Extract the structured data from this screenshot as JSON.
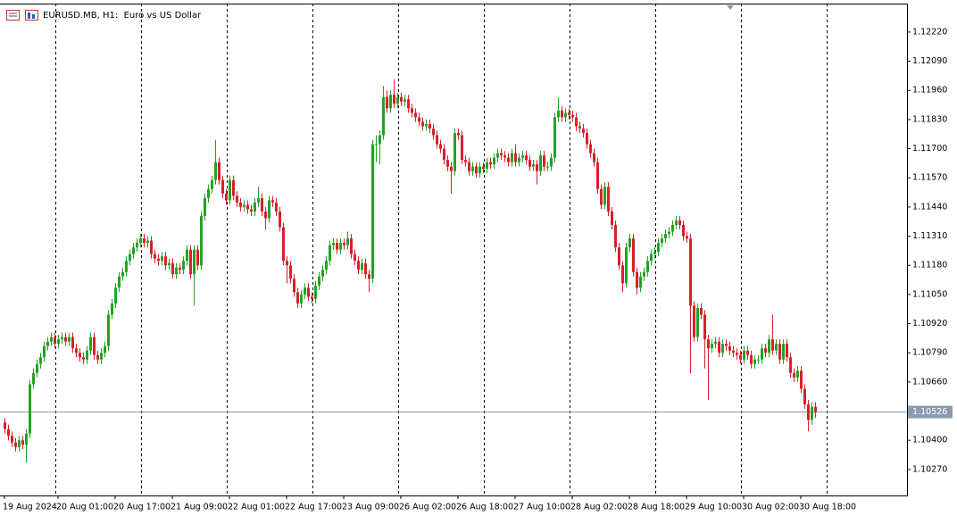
{
  "chart_data": {
    "type": "candlestick",
    "title": "EURUSD.MB, H1:  Euro vs US Dollar",
    "bull_color": "#22a322",
    "bear_color": "#d8202c",
    "grid": false,
    "ylim": [
      1.10154,
      1.12347
    ],
    "xlim": [
      -1.25,
      252.75
    ],
    "yticks": [
      {
        "value": 1.1222,
        "label": "1.12220"
      },
      {
        "value": 1.1209,
        "label": "1.12090"
      },
      {
        "value": 1.1196,
        "label": "1.11960"
      },
      {
        "value": 1.1183,
        "label": "1.11830"
      },
      {
        "value": 1.117,
        "label": "1.11700"
      },
      {
        "value": 1.1157,
        "label": "1.11570"
      },
      {
        "value": 1.1144,
        "label": "1.11440"
      },
      {
        "value": 1.1131,
        "label": "1.11310"
      },
      {
        "value": 1.1118,
        "label": "1.11180"
      },
      {
        "value": 1.1105,
        "label": "1.11050"
      },
      {
        "value": 1.1092,
        "label": "1.10920"
      },
      {
        "value": 1.1079,
        "label": "1.10790"
      },
      {
        "value": 1.1066,
        "label": "1.10660"
      },
      {
        "value": 1.104,
        "label": "1.10400"
      },
      {
        "value": 1.1027,
        "label": "1.10270"
      }
    ],
    "xticks": [
      {
        "value": 0,
        "label": "19 Aug 2024"
      },
      {
        "value": 15,
        "label": "20 Aug 01:00"
      },
      {
        "value": 31,
        "label": "20 Aug 17:00"
      },
      {
        "value": 47,
        "label": "21 Aug 09:00"
      },
      {
        "value": 63,
        "label": "22 Aug 01:00"
      },
      {
        "value": 79,
        "label": "22 Aug 17:00"
      },
      {
        "value": 95,
        "label": "23 Aug 09:00"
      },
      {
        "value": 111,
        "label": "26 Aug 02:00"
      },
      {
        "value": 127,
        "label": "26 Aug 18:00"
      },
      {
        "value": 143,
        "label": "27 Aug 10:00"
      },
      {
        "value": 159,
        "label": "28 Aug 02:00"
      },
      {
        "value": 175,
        "label": "28 Aug 18:00"
      },
      {
        "value": 191,
        "label": "29 Aug 10:00"
      },
      {
        "value": 207,
        "label": "30 Aug 02:00"
      },
      {
        "value": 223,
        "label": "30 Aug 18:00"
      }
    ],
    "last_price": {
      "value": 1.10526,
      "label": "1.10526"
    },
    "open": [
      1.1048,
      1.1045,
      1.1042,
      1.1039,
      1.1037,
      1.104,
      1.1038,
      1.1043,
      1.1065,
      1.107,
      1.1074,
      1.1077,
      1.1082,
      1.1084,
      1.1086,
      1.1083,
      1.1085,
      1.1086,
      1.1084,
      1.1086,
      1.1081,
      1.1079,
      1.1077,
      1.1076,
      1.108,
      1.1086,
      1.1078,
      1.1076,
      1.1079,
      1.1082,
      1.1096,
      1.1101,
      1.1108,
      1.1113,
      1.1115,
      1.112,
      1.1123,
      1.1126,
      1.1128,
      1.113,
      1.1128,
      1.1129,
      1.1123,
      1.1121,
      1.112,
      1.1122,
      1.1118,
      1.1119,
      1.1114,
      1.1117,
      1.1116,
      1.112,
      1.1125,
      1.1114,
      1.1125,
      1.1118,
      1.114,
      1.1148,
      1.1152,
      1.1156,
      1.1164,
      1.1156,
      1.115,
      1.1147,
      1.1156,
      1.1149,
      1.1146,
      1.1144,
      1.1145,
      1.1143,
      1.1142,
      1.1146,
      1.1148,
      1.1142,
      1.1139,
      1.1147,
      1.1146,
      1.1142,
      1.1135,
      1.112,
      1.1118,
      1.1112,
      1.1106,
      1.1101,
      1.1105,
      1.1108,
      1.1104,
      1.1103,
      1.1109,
      1.1113,
      1.1116,
      1.112,
      1.1127,
      1.1128,
      1.1125,
      1.1128,
      1.1127,
      1.113,
      1.1123,
      1.112,
      1.1116,
      1.1119,
      1.1114,
      1.1112,
      1.1172,
      1.1172,
      1.1176,
      1.1193,
      1.1188,
      1.1194,
      1.119,
      1.1193,
      1.1191,
      1.1192,
      1.1188,
      1.1186,
      1.1184,
      1.1182,
      1.118,
      1.1181,
      1.1179,
      1.1176,
      1.1172,
      1.117,
      1.1165,
      1.1162,
      1.116,
      1.1177,
      1.1176,
      1.1165,
      1.1164,
      1.116,
      1.1162,
      1.1159,
      1.1162,
      1.1161,
      1.1164,
      1.1163,
      1.1166,
      1.1168,
      1.1167,
      1.1166,
      1.1164,
      1.1168,
      1.1164,
      1.1166,
      1.1167,
      1.1165,
      1.1162,
      1.1163,
      1.116,
      1.1167,
      1.1162,
      1.1162,
      1.1166,
      1.1184,
      1.1187,
      1.1184,
      1.1186,
      1.1185,
      1.1184,
      1.118,
      1.1179,
      1.1177,
      1.1172,
      1.1168,
      1.1164,
      1.1152,
      1.1145,
      1.1153,
      1.1142,
      1.1136,
      1.1126,
      1.1118,
      1.111,
      1.1126,
      1.113,
      1.1115,
      1.1108,
      1.1113,
      1.1115,
      1.112,
      1.1123,
      1.1124,
      1.1128,
      1.113,
      1.1132,
      1.1133,
      1.1136,
      1.1138,
      1.1136,
      1.1131,
      1.113,
      1.11,
      1.1086,
      1.1099,
      1.1096,
      1.1085,
      1.1081,
      1.1083,
      1.1084,
      1.1079,
      1.1083,
      1.1082,
      1.108,
      1.1079,
      1.1078,
      1.1076,
      1.108,
      1.1078,
      1.1074,
      1.1076,
      1.1076,
      1.1081,
      1.1079,
      1.1085,
      1.108,
      1.1083,
      1.1076,
      1.1083,
      1.1077,
      1.107,
      1.1068,
      1.1071,
      1.1063,
      1.1056,
      1.1049,
      1.1055
    ],
    "high": [
      1.105,
      1.1047,
      1.1044,
      1.1041,
      1.1042,
      1.1042,
      1.1045,
      1.1067,
      1.1072,
      1.1076,
      1.1079,
      1.1084,
      1.1086,
      1.1088,
      1.1088,
      1.1087,
      1.1088,
      1.1088,
      1.1088,
      1.1088,
      1.1083,
      1.1081,
      1.1079,
      1.1082,
      1.1088,
      1.1088,
      1.108,
      1.1081,
      1.1084,
      1.1098,
      1.1103,
      1.111,
      1.1115,
      1.1117,
      1.1122,
      1.1125,
      1.1128,
      1.113,
      1.1132,
      1.1132,
      1.1131,
      1.1131,
      1.1125,
      1.1123,
      1.1124,
      1.1124,
      1.1121,
      1.1121,
      1.1119,
      1.1119,
      1.1122,
      1.1127,
      1.1127,
      1.1127,
      1.1127,
      1.1142,
      1.115,
      1.1154,
      1.1158,
      1.1174,
      1.1166,
      1.1158,
      1.1152,
      1.1158,
      1.1158,
      1.1151,
      1.1148,
      1.1147,
      1.1147,
      1.1145,
      1.1148,
      1.1153,
      1.115,
      1.1144,
      1.1149,
      1.1149,
      1.1148,
      1.1144,
      1.1137,
      1.1122,
      1.112,
      1.1114,
      1.1108,
      1.1107,
      1.111,
      1.111,
      1.1106,
      1.1111,
      1.1115,
      1.1118,
      1.1122,
      1.1129,
      1.113,
      1.113,
      1.113,
      1.113,
      1.1133,
      1.1132,
      1.1125,
      1.1122,
      1.1121,
      1.1121,
      1.1116,
      1.1174,
      1.1176,
      1.1178,
      1.1198,
      1.1196,
      1.1196,
      1.1201,
      1.1195,
      1.1195,
      1.1194,
      1.1194,
      1.119,
      1.1188,
      1.1186,
      1.1184,
      1.1183,
      1.1183,
      1.1181,
      1.1178,
      1.1174,
      1.1172,
      1.1167,
      1.1164,
      1.1179,
      1.1179,
      1.1178,
      1.1167,
      1.1166,
      1.1164,
      1.1164,
      1.1164,
      1.1164,
      1.1166,
      1.1166,
      1.1168,
      1.117,
      1.117,
      1.1169,
      1.1168,
      1.117,
      1.1172,
      1.1168,
      1.1169,
      1.1169,
      1.1167,
      1.1165,
      1.1165,
      1.1169,
      1.1169,
      1.1164,
      1.1168,
      1.1186,
      1.1193,
      1.1189,
      1.1188,
      1.1188,
      1.1187,
      1.1186,
      1.1182,
      1.1181,
      1.1179,
      1.1174,
      1.117,
      1.1166,
      1.1154,
      1.1155,
      1.1155,
      1.1144,
      1.1138,
      1.1128,
      1.112,
      1.1128,
      1.1132,
      1.1132,
      1.1117,
      1.1115,
      1.1117,
      1.1122,
      1.1125,
      1.1126,
      1.113,
      1.1132,
      1.1134,
      1.1135,
      1.1138,
      1.114,
      1.114,
      1.1138,
      1.1133,
      1.1132,
      1.1102,
      1.1101,
      1.1101,
      1.1098,
      1.1087,
      1.1085,
      1.1086,
      1.1086,
      1.1085,
      1.1085,
      1.1084,
      1.1082,
      1.1081,
      1.108,
      1.1082,
      1.1082,
      1.108,
      1.1078,
      1.1078,
      1.1083,
      1.1083,
      1.1087,
      1.1096,
      1.1085,
      1.1085,
      1.1085,
      1.1085,
      1.1079,
      1.1072,
      1.1073,
      1.1073,
      1.1065,
      1.1058,
      1.1057,
      1.1057
    ],
    "low": [
      1.1043,
      1.104,
      1.1037,
      1.1035,
      1.1035,
      1.1036,
      1.103,
      1.1041,
      1.1063,
      1.1068,
      1.1072,
      1.1075,
      1.108,
      1.1082,
      1.1081,
      1.1081,
      1.1083,
      1.1082,
      1.1082,
      1.1079,
      1.1077,
      1.1075,
      1.1074,
      1.1074,
      1.1078,
      1.1076,
      1.1074,
      1.1074,
      1.1077,
      1.108,
      1.1094,
      1.1099,
      1.1106,
      1.1111,
      1.1113,
      1.1118,
      1.1121,
      1.1124,
      1.1126,
      1.1126,
      1.1126,
      1.1121,
      1.1119,
      1.1118,
      1.1118,
      1.1116,
      1.1116,
      1.1112,
      1.1112,
      1.1114,
      1.1114,
      1.1118,
      1.1112,
      1.11,
      1.1116,
      1.1116,
      1.1138,
      1.1146,
      1.115,
      1.1154,
      1.1154,
      1.1148,
      1.1145,
      1.1145,
      1.1147,
      1.1144,
      1.1142,
      1.1142,
      1.1141,
      1.114,
      1.114,
      1.1144,
      1.114,
      1.1134,
      1.1137,
      1.1144,
      1.114,
      1.1133,
      1.1118,
      1.111,
      1.111,
      1.1104,
      1.1099,
      1.1099,
      1.1103,
      1.1102,
      1.1101,
      1.1101,
      1.1107,
      1.1111,
      1.1114,
      1.1118,
      1.1125,
      1.1123,
      1.1123,
      1.1125,
      1.1125,
      1.1121,
      1.1118,
      1.1114,
      1.1114,
      1.1112,
      1.1106,
      1.111,
      1.1164,
      1.1163,
      1.1174,
      1.1186,
      1.1186,
      1.1188,
      1.1188,
      1.1189,
      1.1189,
      1.1186,
      1.1184,
      1.1182,
      1.118,
      1.1178,
      1.1178,
      1.1177,
      1.1174,
      1.117,
      1.1168,
      1.1163,
      1.116,
      1.115,
      1.1158,
      1.1174,
      1.1163,
      1.1162,
      1.1158,
      1.1158,
      1.1157,
      1.1157,
      1.1159,
      1.1159,
      1.1161,
      1.1161,
      1.1164,
      1.1165,
      1.1164,
      1.1162,
      1.1162,
      1.1162,
      1.1162,
      1.1164,
      1.1163,
      1.116,
      1.116,
      1.1154,
      1.1158,
      1.116,
      1.116,
      1.116,
      1.1164,
      1.1182,
      1.1182,
      1.1182,
      1.1183,
      1.1182,
      1.1178,
      1.1177,
      1.1175,
      1.117,
      1.1166,
      1.1162,
      1.115,
      1.1143,
      1.1143,
      1.114,
      1.1134,
      1.1124,
      1.1116,
      1.1106,
      1.1108,
      1.1124,
      1.1113,
      1.1105,
      1.1106,
      1.1111,
      1.1113,
      1.1118,
      1.1121,
      1.1122,
      1.1126,
      1.1128,
      1.113,
      1.1131,
      1.1134,
      1.1134,
      1.1129,
      1.1128,
      1.107,
      1.1084,
      1.1084,
      1.1094,
      1.1072,
      1.1058,
      1.1079,
      1.1081,
      1.1077,
      1.1077,
      1.108,
      1.1078,
      1.1077,
      1.1076,
      1.1074,
      1.1074,
      1.1076,
      1.1072,
      1.1072,
      1.1074,
      1.1074,
      1.1077,
      1.1077,
      1.1078,
      1.1078,
      1.1074,
      1.1074,
      1.1075,
      1.1068,
      1.1066,
      1.1066,
      1.1061,
      1.1054,
      1.1044,
      1.1047,
      1.105
    ],
    "close": [
      1.1045,
      1.1042,
      1.1039,
      1.1037,
      1.104,
      1.1038,
      1.1043,
      1.1065,
      1.107,
      1.1074,
      1.1077,
      1.1082,
      1.1084,
      1.1086,
      1.1083,
      1.1085,
      1.1086,
      1.1084,
      1.1086,
      1.1081,
      1.1079,
      1.1077,
      1.1076,
      1.108,
      1.1086,
      1.1078,
      1.1076,
      1.1079,
      1.1082,
      1.1096,
      1.1101,
      1.1108,
      1.1113,
      1.1115,
      1.112,
      1.1123,
      1.1126,
      1.1128,
      1.113,
      1.1128,
      1.1129,
      1.1123,
      1.1121,
      1.112,
      1.1122,
      1.1118,
      1.1119,
      1.1114,
      1.1117,
      1.1116,
      1.112,
      1.1125,
      1.1114,
      1.1125,
      1.1118,
      1.114,
      1.1148,
      1.1152,
      1.1156,
      1.1164,
      1.1156,
      1.115,
      1.1147,
      1.1156,
      1.1149,
      1.1146,
      1.1144,
      1.1145,
      1.1143,
      1.1142,
      1.1146,
      1.1148,
      1.1142,
      1.1139,
      1.1147,
      1.1146,
      1.1142,
      1.1135,
      1.112,
      1.1118,
      1.1112,
      1.1106,
      1.1101,
      1.1105,
      1.1108,
      1.1104,
      1.1103,
      1.1109,
      1.1113,
      1.1116,
      1.112,
      1.1127,
      1.1128,
      1.1125,
      1.1128,
      1.1127,
      1.113,
      1.1123,
      1.112,
      1.1116,
      1.1119,
      1.1114,
      1.1112,
      1.1172,
      1.1172,
      1.1176,
      1.1193,
      1.1188,
      1.1194,
      1.119,
      1.1193,
      1.1191,
      1.1192,
      1.1188,
      1.1186,
      1.1184,
      1.1182,
      1.118,
      1.1181,
      1.1179,
      1.1176,
      1.1172,
      1.117,
      1.1165,
      1.1162,
      1.116,
      1.1177,
      1.1176,
      1.1165,
      1.1164,
      1.116,
      1.1162,
      1.1159,
      1.1162,
      1.1161,
      1.1164,
      1.1163,
      1.1166,
      1.1168,
      1.1167,
      1.1166,
      1.1164,
      1.1168,
      1.1164,
      1.1166,
      1.1167,
      1.1165,
      1.1162,
      1.1163,
      1.116,
      1.1167,
      1.1162,
      1.1162,
      1.1166,
      1.1184,
      1.1187,
      1.1184,
      1.1186,
      1.1185,
      1.1184,
      1.118,
      1.1179,
      1.1177,
      1.1172,
      1.1168,
      1.1164,
      1.1152,
      1.1145,
      1.1153,
      1.1142,
      1.1136,
      1.1126,
      1.1118,
      1.111,
      1.1126,
      1.113,
      1.1115,
      1.1108,
      1.1113,
      1.1115,
      1.112,
      1.1123,
      1.1124,
      1.1128,
      1.113,
      1.1132,
      1.1133,
      1.1136,
      1.1138,
      1.1136,
      1.1131,
      1.113,
      1.11,
      1.1086,
      1.1099,
      1.1096,
      1.1085,
      1.1081,
      1.1083,
      1.1084,
      1.1079,
      1.1083,
      1.1082,
      1.108,
      1.1079,
      1.1078,
      1.1076,
      1.108,
      1.1078,
      1.1074,
      1.1076,
      1.1076,
      1.1081,
      1.1079,
      1.1085,
      1.108,
      1.1083,
      1.1076,
      1.1083,
      1.1077,
      1.107,
      1.1068,
      1.1071,
      1.1063,
      1.1056,
      1.1049,
      1.1055,
      1.10526
    ]
  }
}
